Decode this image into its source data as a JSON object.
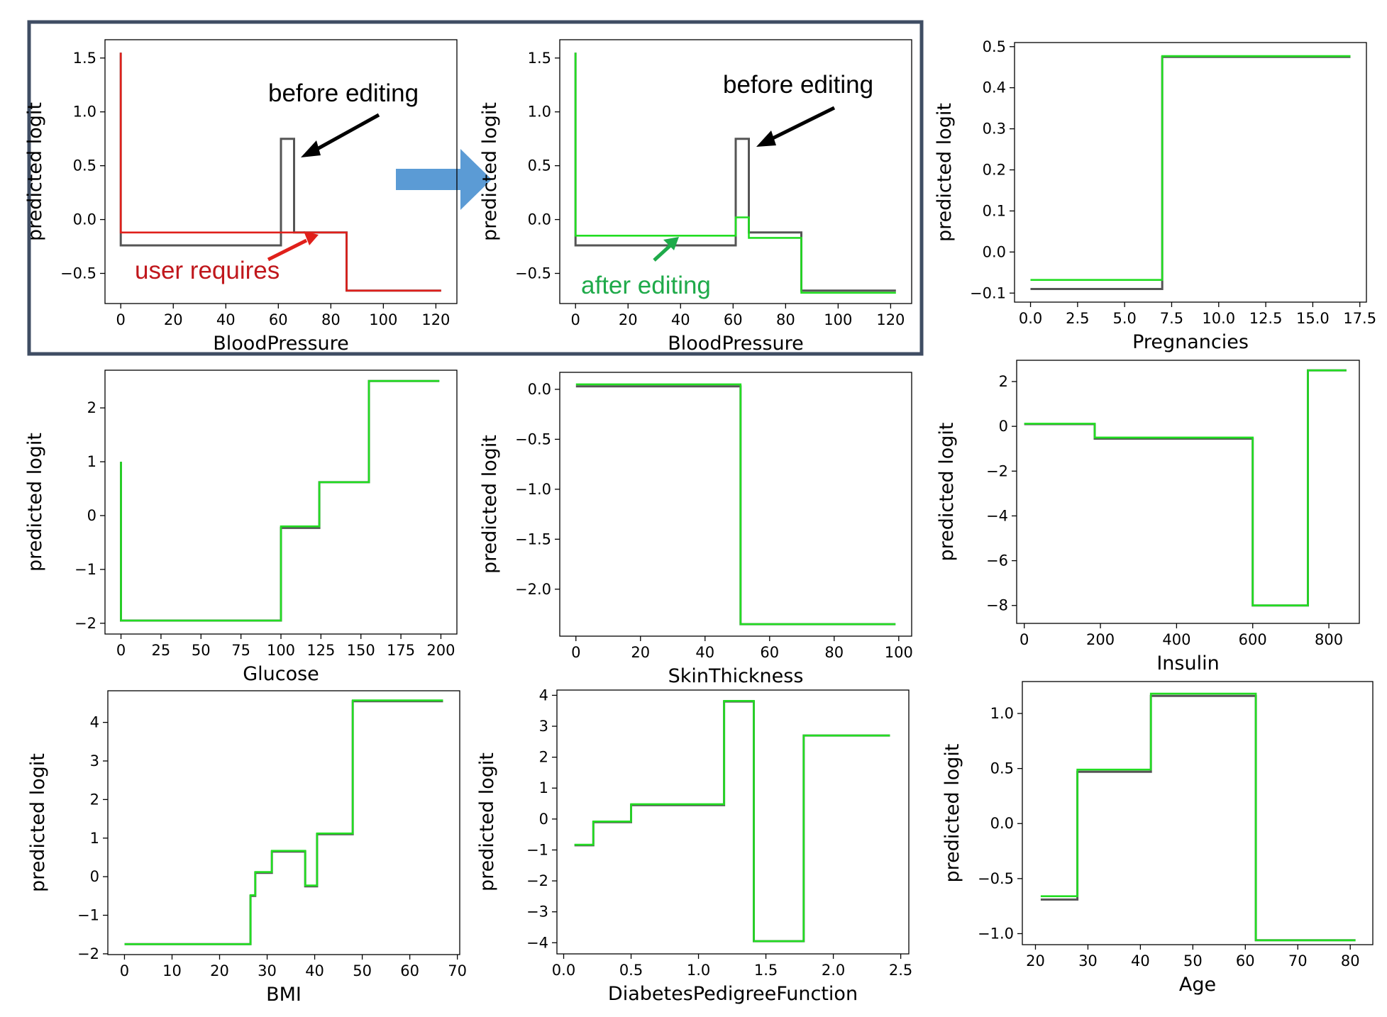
{
  "chart_data": [
    {
      "type": "line",
      "xlabel": "BloodPressure",
      "ylabel": "predicted logit",
      "xticks": [
        0,
        20,
        40,
        60,
        80,
        100,
        120
      ],
      "yticks": [
        -0.5,
        0.0,
        0.5,
        1.0,
        1.5
      ],
      "xlim": [
        -6,
        128
      ],
      "ylim": [
        -0.78,
        1.67
      ],
      "series": [
        {
          "role": "original",
          "color": "#555555",
          "x": [
            0,
            0,
            61,
            61,
            66,
            66,
            86,
            86,
            122
          ],
          "y": [
            1.55,
            -0.24,
            -0.24,
            0.75,
            0.75,
            -0.12,
            -0.12,
            -0.66,
            -0.66
          ]
        },
        {
          "role": "user requirement",
          "color": "#e0201b",
          "x": [
            0,
            0,
            86,
            86,
            122
          ],
          "y": [
            1.55,
            -0.12,
            -0.12,
            -0.66,
            -0.66
          ]
        }
      ],
      "annotations": [
        {
          "text": "before editing",
          "color": "#000000"
        },
        {
          "text": "user requires",
          "color": "#c0171c"
        }
      ]
    },
    {
      "type": "line",
      "xlabel": "BloodPressure",
      "ylabel": "predicted logit",
      "xticks": [
        0,
        20,
        40,
        60,
        80,
        100,
        120
      ],
      "yticks": [
        -0.5,
        0.0,
        0.5,
        1.0,
        1.5
      ],
      "xlim": [
        -6,
        128
      ],
      "ylim": [
        -0.78,
        1.67
      ],
      "series": [
        {
          "role": "original",
          "color": "#555555",
          "x": [
            0,
            0,
            61,
            61,
            66,
            66,
            86,
            86,
            122
          ],
          "y": [
            1.55,
            -0.24,
            -0.24,
            0.75,
            0.75,
            -0.12,
            -0.12,
            -0.66,
            -0.66
          ]
        },
        {
          "role": "edited",
          "color": "#22dd22",
          "x": [
            0,
            0,
            61,
            61,
            66,
            66,
            86,
            86,
            122
          ],
          "y": [
            1.55,
            -0.15,
            -0.15,
            0.02,
            0.02,
            -0.17,
            -0.17,
            -0.68,
            -0.68
          ]
        }
      ],
      "annotations": [
        {
          "text": "before editing",
          "color": "#000000"
        },
        {
          "text": "after editing",
          "color": "#1faa4a"
        }
      ]
    },
    {
      "type": "line",
      "xlabel": "Pregnancies",
      "ylabel": "predicted logit",
      "xticks": [
        0.0,
        2.5,
        5.0,
        7.5,
        10.0,
        12.5,
        15.0,
        17.5
      ],
      "yticks": [
        -0.1,
        0.0,
        0.1,
        0.2,
        0.3,
        0.4,
        0.5
      ],
      "xlim": [
        -0.85,
        17.85
      ],
      "ylim": [
        -0.122,
        0.51
      ],
      "series": [
        {
          "role": "original",
          "color": "#555555",
          "x": [
            0,
            7,
            7,
            17
          ],
          "y": [
            -0.09,
            -0.09,
            0.475,
            0.475
          ]
        },
        {
          "role": "edited",
          "color": "#22dd22",
          "x": [
            0,
            7,
            7,
            17
          ],
          "y": [
            -0.068,
            -0.068,
            0.477,
            0.477
          ]
        }
      ]
    },
    {
      "type": "line",
      "xlabel": "Glucose",
      "ylabel": "predicted logit",
      "xticks": [
        0,
        25,
        50,
        75,
        100,
        125,
        150,
        175,
        200
      ],
      "yticks": [
        -2,
        -1,
        0,
        1,
        2
      ],
      "xlim": [
        -10,
        210
      ],
      "ylim": [
        -2.2,
        2.7
      ],
      "series": [
        {
          "role": "original",
          "color": "#555555",
          "x": [
            0,
            0,
            100,
            100,
            124,
            124,
            155,
            155,
            199
          ],
          "y": [
            1.0,
            -1.95,
            -1.95,
            -0.23,
            -0.23,
            0.62,
            0.62,
            2.5,
            2.5
          ]
        },
        {
          "role": "edited",
          "color": "#22dd22",
          "x": [
            0,
            0,
            100,
            100,
            124,
            124,
            155,
            155,
            199
          ],
          "y": [
            1.0,
            -1.95,
            -1.95,
            -0.2,
            -0.2,
            0.62,
            0.62,
            2.5,
            2.5
          ]
        }
      ]
    },
    {
      "type": "line",
      "xlabel": "SkinThickness",
      "ylabel": "predicted logit",
      "xticks": [
        0,
        20,
        40,
        60,
        80,
        100
      ],
      "yticks": [
        -2.0,
        -1.5,
        -1.0,
        -0.5,
        0.0
      ],
      "xlim": [
        -5,
        104
      ],
      "ylim": [
        -2.47,
        0.17
      ],
      "series": [
        {
          "role": "original",
          "color": "#555555",
          "x": [
            0,
            51,
            51,
            99
          ],
          "y": [
            0.03,
            0.03,
            -2.35,
            -2.35
          ]
        },
        {
          "role": "edited",
          "color": "#22dd22",
          "x": [
            0,
            51,
            51,
            99
          ],
          "y": [
            0.05,
            0.05,
            -2.35,
            -2.35
          ]
        }
      ]
    },
    {
      "type": "line",
      "xlabel": "Insulin",
      "ylabel": "predicted logit",
      "xticks": [
        0,
        200,
        400,
        600,
        800
      ],
      "yticks": [
        -8,
        -6,
        -4,
        -2,
        0,
        2
      ],
      "xlim": [
        -20,
        880
      ],
      "ylim": [
        -8.8,
        2.95
      ],
      "series": [
        {
          "role": "original",
          "color": "#555555",
          "x": [
            0,
            185,
            185,
            600,
            600,
            745,
            745,
            846
          ],
          "y": [
            0.1,
            0.1,
            -0.55,
            -0.55,
            -8.0,
            -8.0,
            2.5,
            2.5
          ]
        },
        {
          "role": "edited",
          "color": "#22dd22",
          "x": [
            0,
            185,
            185,
            600,
            600,
            745,
            745,
            846
          ],
          "y": [
            0.12,
            0.12,
            -0.5,
            -0.5,
            -8.0,
            -8.0,
            2.5,
            2.5
          ]
        }
      ]
    },
    {
      "type": "line",
      "xlabel": "BMI",
      "ylabel": "predicted logit",
      "xticks": [
        0,
        10,
        20,
        30,
        40,
        50,
        60,
        70
      ],
      "yticks": [
        -2,
        -1,
        0,
        1,
        2,
        3,
        4
      ],
      "xlim": [
        -3.5,
        70.5
      ],
      "ylim": [
        -2.02,
        4.82
      ],
      "series": [
        {
          "role": "original",
          "color": "#555555",
          "x": [
            0,
            26.5,
            26.5,
            27.5,
            27.5,
            31,
            31,
            38,
            38,
            40.5,
            40.5,
            48,
            48,
            67
          ],
          "y": [
            -1.75,
            -1.75,
            -0.5,
            -0.5,
            0.1,
            0.1,
            0.65,
            0.65,
            -0.25,
            -0.25,
            1.1,
            1.1,
            4.55,
            4.55
          ]
        },
        {
          "role": "edited",
          "color": "#22dd22",
          "x": [
            0,
            26.5,
            26.5,
            27.5,
            27.5,
            31,
            31,
            38,
            38,
            40.5,
            40.5,
            48,
            48,
            67
          ],
          "y": [
            -1.75,
            -1.75,
            -0.48,
            -0.48,
            0.12,
            0.12,
            0.67,
            0.67,
            -0.23,
            -0.23,
            1.12,
            1.12,
            4.57,
            4.57
          ]
        }
      ]
    },
    {
      "type": "line",
      "xlabel": "DiabetesPedigreeFunction",
      "ylabel": "predicted logit",
      "xticks": [
        0.0,
        0.5,
        1.0,
        1.5,
        2.0,
        2.5
      ],
      "yticks": [
        -4,
        -3,
        -2,
        -1,
        0,
        1,
        2,
        3,
        4
      ],
      "xlim": [
        -0.05,
        2.56
      ],
      "ylim": [
        -4.36,
        4.17
      ],
      "series": [
        {
          "role": "original",
          "color": "#555555",
          "x": [
            0.08,
            0.22,
            0.22,
            0.5,
            0.5,
            1.19,
            1.19,
            1.41,
            1.41,
            1.78,
            1.78,
            2.42
          ],
          "y": [
            -0.85,
            -0.85,
            -0.1,
            -0.1,
            0.45,
            0.45,
            3.8,
            3.8,
            -3.95,
            -3.95,
            2.7,
            2.7
          ]
        },
        {
          "role": "edited",
          "color": "#22dd22",
          "x": [
            0.08,
            0.22,
            0.22,
            0.5,
            0.5,
            1.19,
            1.19,
            1.41,
            1.41,
            1.78,
            1.78,
            2.42
          ],
          "y": [
            -0.83,
            -0.83,
            -0.08,
            -0.08,
            0.48,
            0.48,
            3.82,
            3.82,
            -3.95,
            -3.95,
            2.7,
            2.7
          ]
        }
      ]
    },
    {
      "type": "line",
      "xlabel": "Age",
      "ylabel": "predicted logit",
      "xticks": [
        20,
        30,
        40,
        50,
        60,
        70,
        80
      ],
      "yticks": [
        -1.0,
        -0.5,
        0.0,
        0.5,
        1.0
      ],
      "xlim": [
        17.5,
        84.3
      ],
      "ylim": [
        -1.1,
        1.29
      ],
      "series": [
        {
          "role": "original",
          "color": "#555555",
          "x": [
            21,
            28,
            28,
            42,
            42,
            62,
            62,
            81
          ],
          "y": [
            -0.69,
            -0.69,
            0.47,
            0.47,
            1.16,
            1.16,
            -1.06,
            -1.06
          ]
        },
        {
          "role": "edited",
          "color": "#22dd22",
          "x": [
            21,
            28,
            28,
            42,
            42,
            62,
            62,
            81
          ],
          "y": [
            -0.66,
            -0.66,
            0.49,
            0.49,
            1.18,
            1.18,
            -1.06,
            -1.06
          ]
        }
      ]
    }
  ]
}
